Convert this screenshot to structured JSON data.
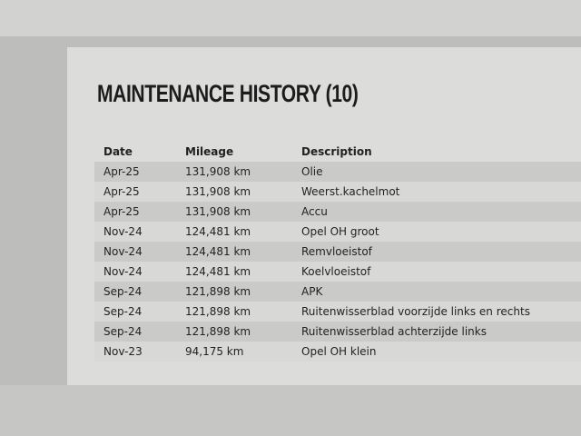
{
  "title": "MAINTENANCE HISTORY (10)",
  "columns": [
    "Date",
    "Mileage",
    "Description"
  ],
  "rows": [
    [
      "Apr-25",
      "131,908 km",
      "Olie"
    ],
    [
      "Apr-25",
      "131,908 km",
      "Weerst.kachelmot"
    ],
    [
      "Apr-25",
      "131,908 km",
      "Accu"
    ],
    [
      "Nov-24",
      "124,481 km",
      "Opel OH groot"
    ],
    [
      "Nov-24",
      "124,481 km",
      "Remvloeistof"
    ],
    [
      "Nov-24",
      "124,481 km",
      "Koelvloeistof"
    ],
    [
      "Sep-24",
      "121,898 km",
      "APK"
    ],
    [
      "Sep-24",
      "121,898 km",
      "Ruitenwisserblad voorzijde links en rechts"
    ],
    [
      "Sep-24",
      "121,898 km",
      "Ruitenwisserblad achterzijde links"
    ],
    [
      "Nov-23",
      "94,175 km",
      "Opel OH klein"
    ]
  ]
}
